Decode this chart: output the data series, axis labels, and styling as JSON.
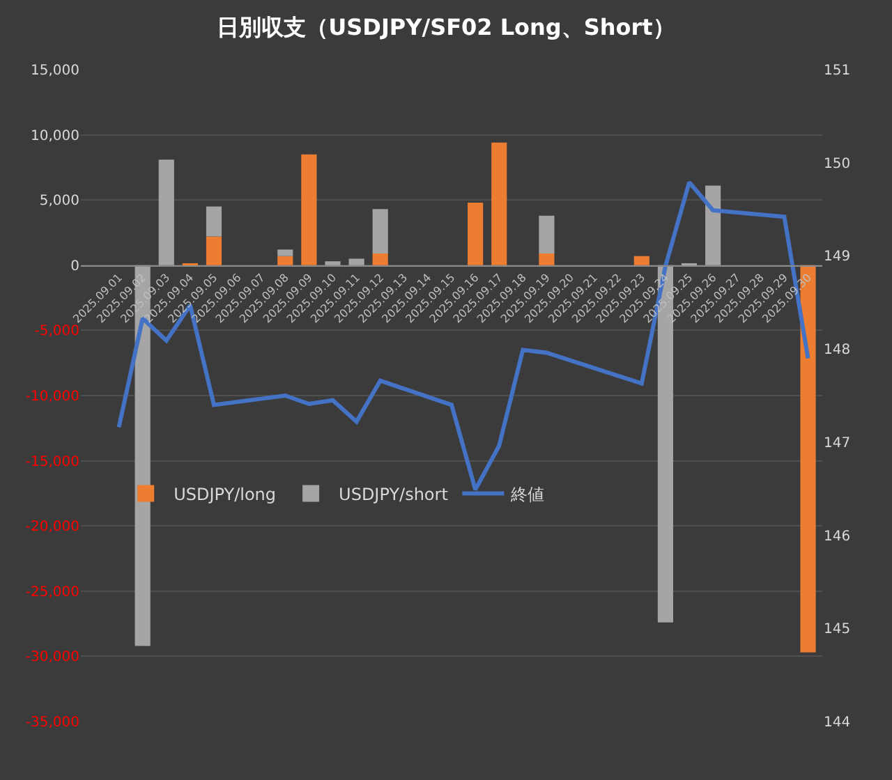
{
  "chart_data": {
    "type": "bar",
    "stacked": true,
    "title": "日別収支（USDJPY/SF02 Long、Short）",
    "categories": [
      "2025.09.01",
      "2025.09.02",
      "2025.09.03",
      "2025.09.04",
      "2025.09.05",
      "2025.09.06",
      "2025.09.07",
      "2025.09.08",
      "2025.09.09",
      "2025.09.10",
      "2025.09.11",
      "2025.09.12",
      "2025.09.13",
      "2025.09.14",
      "2025.09.15",
      "2025.09.16",
      "2025.09.17",
      "2025.09.18",
      "2025.09.19",
      "2025.09.20",
      "2025.09.21",
      "2025.09.22",
      "2025.09.23",
      "2025.09.24",
      "2025.09.25",
      "2025.09.26",
      "2025.09.27",
      "2025.09.28",
      "2025.09.29",
      "2025.09.30"
    ],
    "series": [
      {
        "name": "USDJPY/long",
        "color": "#ed7d31",
        "values": [
          0,
          0,
          0,
          100,
          2200,
          null,
          null,
          700,
          8500,
          0,
          null,
          900,
          null,
          null,
          0,
          4800,
          9400,
          0,
          900,
          null,
          null,
          0,
          700,
          0,
          0,
          0,
          null,
          null,
          0,
          -29700
        ]
      },
      {
        "name": "USDJPY/short",
        "color": "#a5a5a5",
        "values": [
          0,
          -29200,
          8100,
          0,
          2300,
          null,
          null,
          500,
          0,
          300,
          500,
          3400,
          null,
          null,
          0,
          0,
          0,
          0,
          2900,
          null,
          null,
          0,
          0,
          -27400,
          100,
          6100,
          null,
          null,
          0,
          0
        ]
      },
      {
        "name": "終値",
        "type": "line",
        "axis": "y2",
        "color": "#4472c4",
        "values": [
          147.16,
          148.33,
          148.09,
          148.47,
          147.4,
          null,
          null,
          147.5,
          147.41,
          147.45,
          147.22,
          147.66,
          null,
          null,
          147.4,
          146.49,
          146.96,
          147.99,
          147.96,
          null,
          null,
          null,
          147.63,
          148.89,
          149.79,
          149.49,
          null,
          null,
          149.42,
          147.9
        ]
      }
    ],
    "ylim": [
      -35000,
      15000
    ],
    "yticks": [
      {
        "value": -35000,
        "label": "-35,000"
      },
      {
        "value": -30000,
        "label": "-30,000"
      },
      {
        "value": -25000,
        "label": "-25,000"
      },
      {
        "value": -20000,
        "label": "-20,000"
      },
      {
        "value": -15000,
        "label": "-15,000"
      },
      {
        "value": -10000,
        "label": "-10,000"
      },
      {
        "value": -5000,
        "label": "-5,000"
      },
      {
        "value": 0,
        "label": "0"
      },
      {
        "value": 5000,
        "label": "5,000"
      },
      {
        "value": 10000,
        "label": "10,000"
      },
      {
        "value": 15000,
        "label": "15,000"
      }
    ],
    "y2lim": [
      144,
      151
    ],
    "y2ticks": [
      144,
      145,
      146,
      147,
      148,
      149,
      150,
      151
    ],
    "grid": "y",
    "legend": "left",
    "marker": "none",
    "line_style": "solid"
  }
}
